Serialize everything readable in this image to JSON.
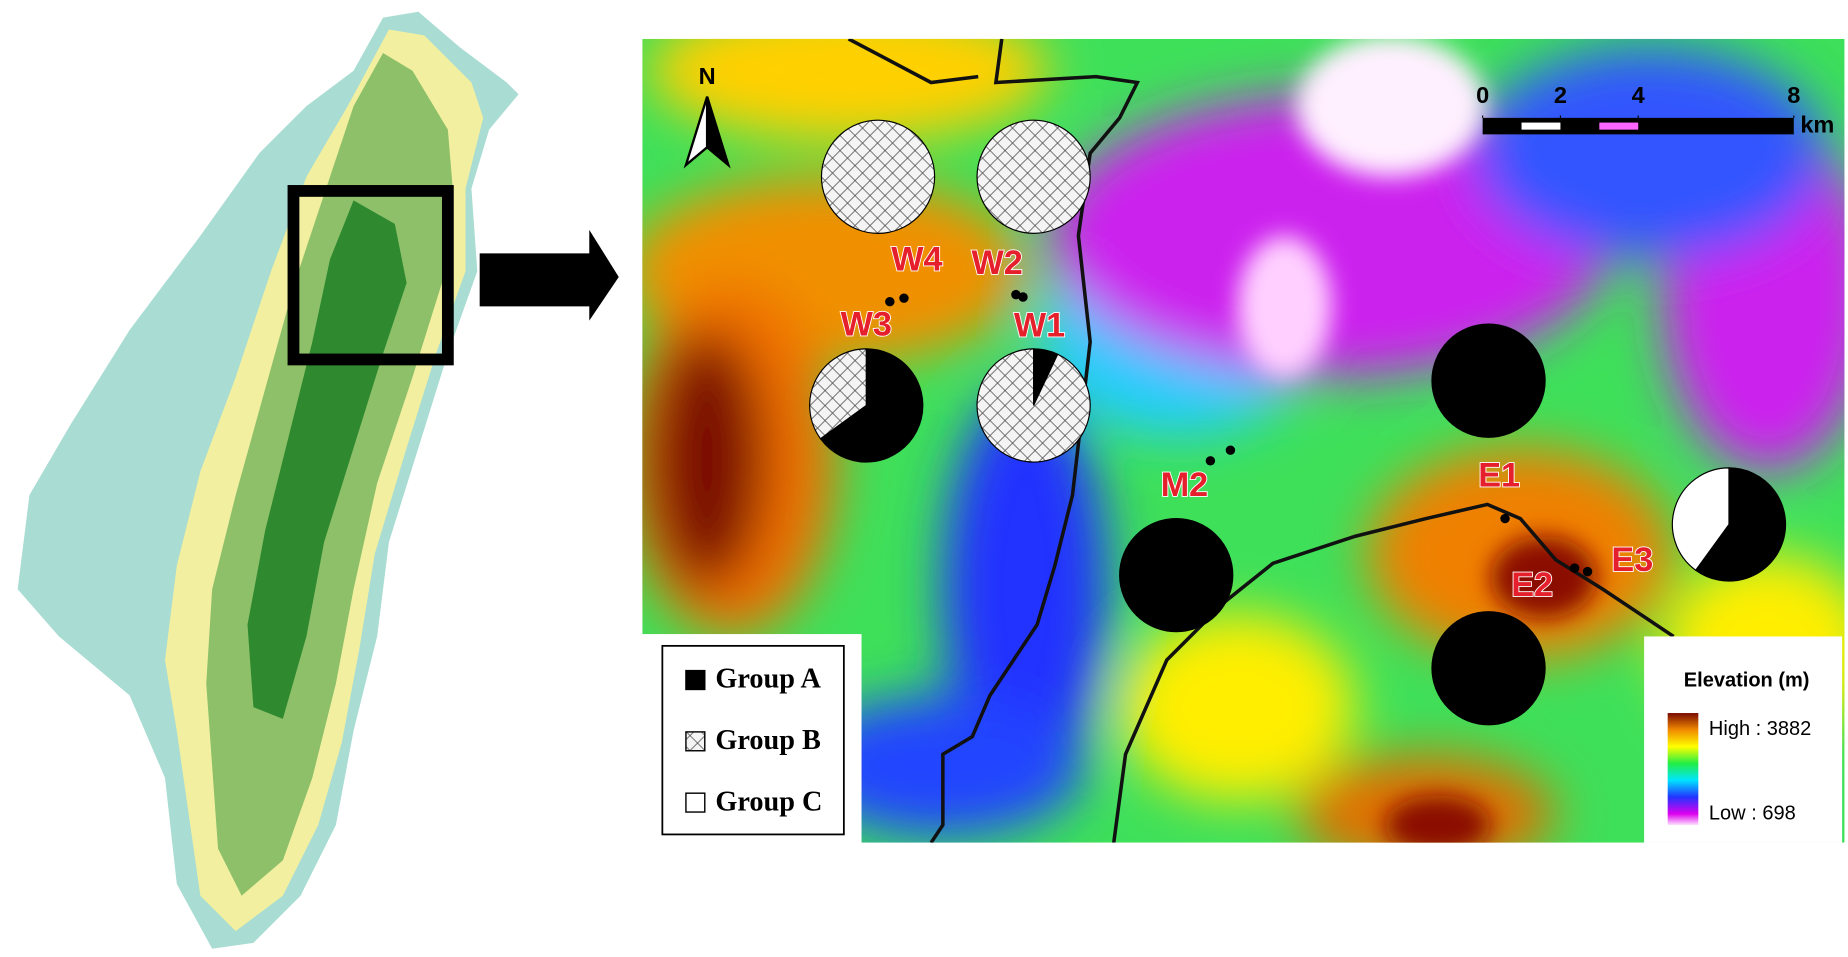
{
  "north": "N",
  "scale_bar": {
    "ticks": [
      0,
      2,
      4,
      8
    ],
    "range": [
      0,
      8
    ],
    "unit": "km"
  },
  "groups": [
    {
      "name": "Group A",
      "fill": "black"
    },
    {
      "name": "Group B",
      "fill": "hatch"
    },
    {
      "name": "Group C",
      "fill": "white"
    }
  ],
  "sites": [
    {
      "label": "W4",
      "values": [
        0,
        100,
        0
      ]
    },
    {
      "label": "W2",
      "values": [
        0,
        100,
        0
      ]
    },
    {
      "label": "W3",
      "values": [
        65,
        35,
        0
      ]
    },
    {
      "label": "W1",
      "values": [
        7,
        93,
        0
      ]
    },
    {
      "label": "M2",
      "values": [
        100,
        0,
        0
      ]
    },
    {
      "label": "E1",
      "values": [
        100,
        0,
        0
      ]
    },
    {
      "label": "E2",
      "values": [
        100,
        0,
        0
      ]
    },
    {
      "label": "E3",
      "values": [
        60,
        0,
        40
      ]
    }
  ],
  "elevation_legend": {
    "title": "Elevation (m)",
    "high": "High : 3882",
    "low": "Low : 698"
  }
}
